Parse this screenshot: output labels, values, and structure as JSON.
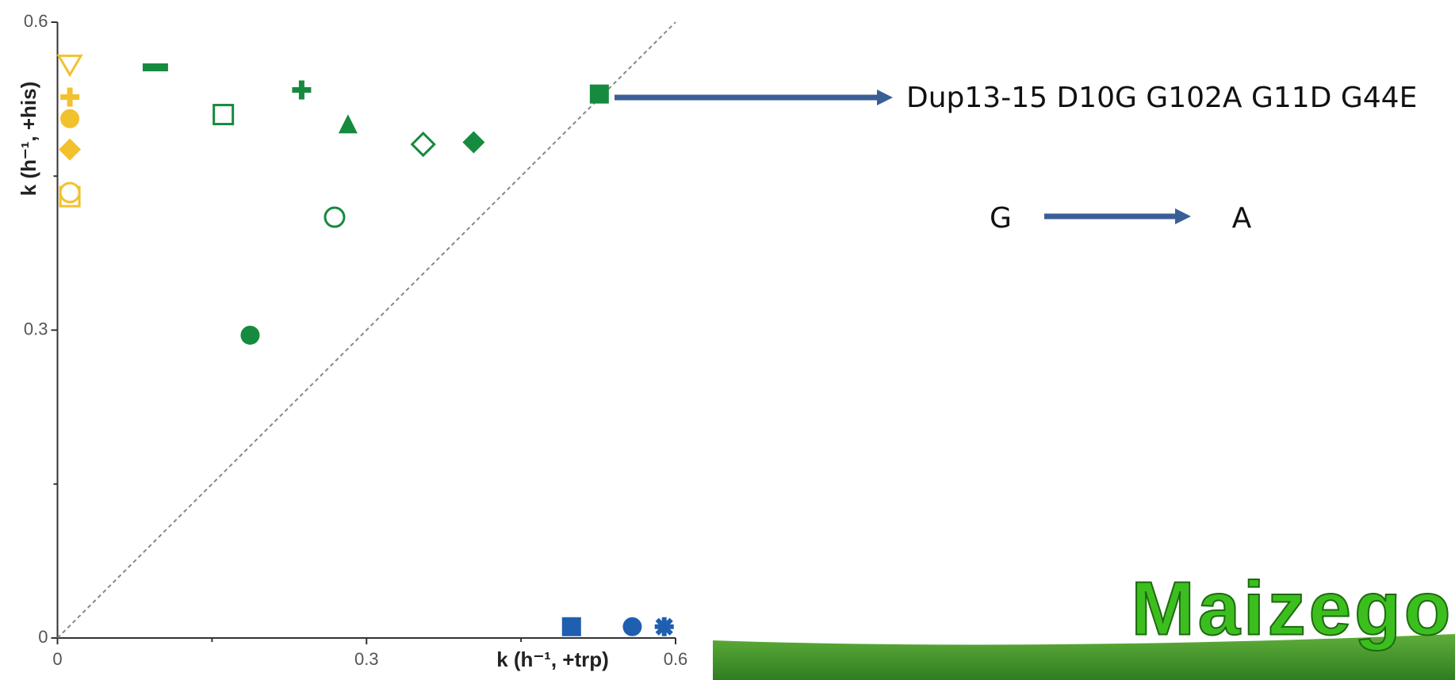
{
  "chart_data": {
    "type": "scatter",
    "xlabel": "k (h⁻¹, +trp)",
    "ylabel": "k (h⁻¹, +his)",
    "xlim": [
      0,
      0.6
    ],
    "ylim": [
      0,
      0.6
    ],
    "xticks": [
      0,
      0.3,
      0.6
    ],
    "yticks": [
      0,
      0.3,
      0.6
    ],
    "minor_xticks": [
      0.15,
      0.45
    ],
    "minor_yticks": [
      0.15,
      0.45
    ],
    "diagonal": true,
    "series": [
      {
        "color": "#f2c12e",
        "markers": [
          "triangle-down-open",
          "plus",
          "circle",
          "diamond",
          "square-open",
          "circle-open"
        ],
        "x": [
          0.012,
          0.012,
          0.012,
          0.012,
          0.012,
          0.012
        ],
        "values": [
          0.558,
          0.527,
          0.506,
          0.476,
          0.43,
          0.434
        ]
      },
      {
        "color": "#168a3e",
        "markers": [
          "minus",
          "plus",
          "square-open",
          "triangle",
          "diamond-open",
          "diamond",
          "circle-open",
          "circle",
          "square"
        ],
        "x": [
          0.095,
          0.237,
          0.161,
          0.282,
          0.355,
          0.404,
          0.269,
          0.187,
          0.526
        ],
        "values": [
          0.556,
          0.534,
          0.51,
          0.501,
          0.481,
          0.483,
          0.41,
          0.295,
          0.53
        ]
      },
      {
        "color": "#1f5fb0",
        "markers": [
          "square",
          "circle",
          "asterisk"
        ],
        "x": [
          0.499,
          0.558,
          0.589
        ],
        "values": [
          0.011,
          0.011,
          0.011
        ]
      }
    ],
    "annotations": [
      "Dup13-15 D10G G102A G11D G44E",
      "G",
      "A"
    ]
  },
  "logo": "Maizego"
}
